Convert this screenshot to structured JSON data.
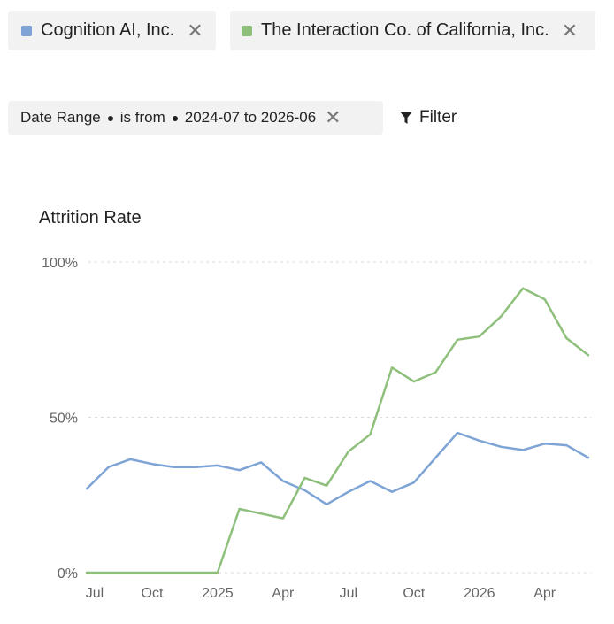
{
  "filters": {
    "companies": [
      {
        "name": "Cognition AI, Inc.",
        "color": "#7ea4d6"
      },
      {
        "name": "The Interaction Co. of California, Inc.",
        "color": "#8ec07c"
      }
    ],
    "date_range": {
      "field": "Date Range",
      "operator": "is from",
      "from": "2024-07",
      "connector": "to",
      "to": "2026-06"
    },
    "filter_label": "Filter"
  },
  "chart_data": {
    "type": "line",
    "title": "Attrition Rate",
    "xlabel": "",
    "ylabel": "",
    "x": [
      "2024-07",
      "2024-08",
      "2024-09",
      "2024-10",
      "2024-11",
      "2024-12",
      "2025-01",
      "2025-02",
      "2025-03",
      "2025-04",
      "2025-05",
      "2025-06",
      "2025-07",
      "2025-08",
      "2025-09",
      "2025-10",
      "2025-11",
      "2025-12",
      "2026-01",
      "2026-02",
      "2026-03",
      "2026-04",
      "2026-05",
      "2026-06"
    ],
    "x_tick_labels": [
      {
        "x": "2024-07",
        "label": "Jul"
      },
      {
        "x": "2024-10",
        "label": "Oct"
      },
      {
        "x": "2025-01",
        "label": "2025"
      },
      {
        "x": "2025-04",
        "label": "Apr"
      },
      {
        "x": "2025-07",
        "label": "Jul"
      },
      {
        "x": "2025-10",
        "label": "Oct"
      },
      {
        "x": "2026-01",
        "label": "2026"
      },
      {
        "x": "2026-04",
        "label": "Apr"
      }
    ],
    "y_ticks": [
      {
        "value": 0,
        "label": "0%"
      },
      {
        "value": 50,
        "label": "50%"
      },
      {
        "value": 100,
        "label": "100%"
      }
    ],
    "ylim": [
      0,
      100
    ],
    "grid": true,
    "series": [
      {
        "name": "Cognition AI, Inc.",
        "color": "#7ea4d6",
        "values": [
          27,
          34,
          36.5,
          35,
          34,
          34,
          34.5,
          33,
          35.5,
          29.5,
          26.5,
          22,
          26,
          29.5,
          26,
          29,
          37,
          45,
          42.5,
          40.5,
          39.5,
          41.5,
          41,
          37
        ]
      },
      {
        "name": "The Interaction Co. of California, Inc.",
        "color": "#8ec07c",
        "values": [
          0,
          0,
          0,
          0,
          0,
          0,
          0,
          20.5,
          19,
          17.5,
          30.5,
          28,
          39,
          44.5,
          66,
          61.5,
          64.5,
          75,
          76,
          82.5,
          91.5,
          88,
          75.5,
          70
        ]
      }
    ]
  }
}
